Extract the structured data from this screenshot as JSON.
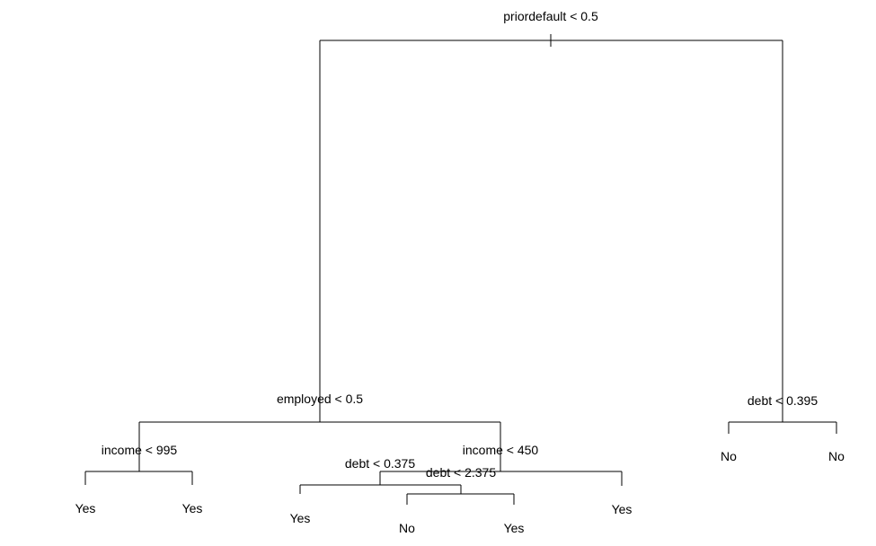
{
  "splits": {
    "root": "priordefault < 0.5",
    "employed": "employed < 0.5",
    "debt_right": "debt < 0.395",
    "income_left": "income < 995",
    "income_mid": "income < 450",
    "debt_mid": "debt < 0.375",
    "debt_inner": "debt < 2.375"
  },
  "leaves": {
    "income_left_yes_1": "Yes",
    "income_left_yes_2": "Yes",
    "debt_mid_yes": "Yes",
    "debt_inner_no": "No",
    "debt_inner_yes": "Yes",
    "income_mid_yes": "Yes",
    "debt_right_no_1": "No",
    "debt_right_no_2": "No"
  },
  "colors": {
    "line": "#000000",
    "text": "#000000",
    "background": "#ffffff"
  }
}
